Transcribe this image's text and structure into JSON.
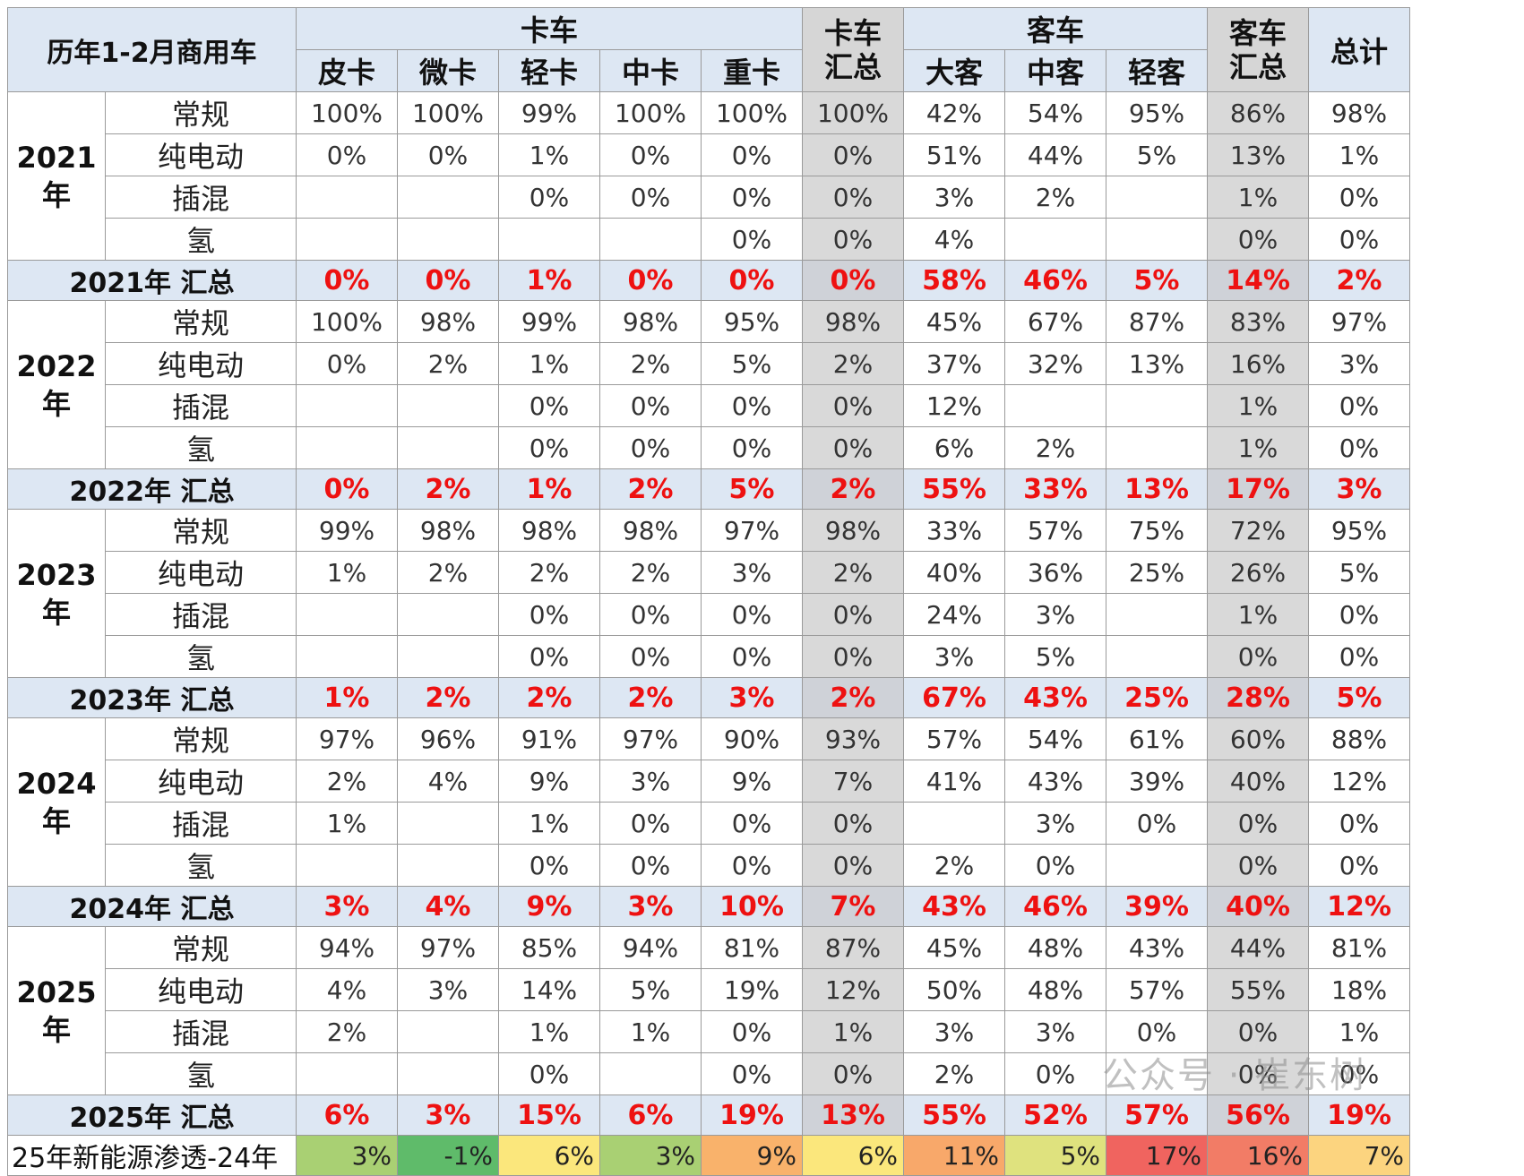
{
  "corner": "历年1-2月商用车",
  "groups": {
    "truck": "卡车",
    "truck_sum": "卡车汇总",
    "bus": "客车",
    "bus_sum": "客车汇总",
    "total": "总计"
  },
  "columns": [
    "皮卡",
    "微卡",
    "轻卡",
    "中卡",
    "重卡",
    "卡车汇总",
    "大客",
    "中客",
    "轻客",
    "客车汇总",
    "总计"
  ],
  "year_blocks": [
    {
      "year": "2021年",
      "sum_label": "2021年 汇总",
      "rows": [
        {
          "label": "常规",
          "values": [
            "100%",
            "100%",
            "99%",
            "100%",
            "100%",
            "100%",
            "42%",
            "54%",
            "95%",
            "86%",
            "98%"
          ]
        },
        {
          "label": "纯电动",
          "values": [
            "0%",
            "0%",
            "1%",
            "0%",
            "0%",
            "0%",
            "51%",
            "44%",
            "5%",
            "13%",
            "1%"
          ]
        },
        {
          "label": "插混",
          "values": [
            "",
            "",
            "0%",
            "0%",
            "0%",
            "0%",
            "3%",
            "2%",
            "",
            "1%",
            "0%"
          ]
        },
        {
          "label": "氢",
          "values": [
            "",
            "",
            "",
            "",
            "0%",
            "0%",
            "4%",
            "",
            "",
            "0%",
            "0%"
          ]
        }
      ],
      "summary": [
        "0%",
        "0%",
        "1%",
        "0%",
        "0%",
        "0%",
        "58%",
        "46%",
        "5%",
        "14%",
        "2%"
      ]
    },
    {
      "year": "2022年",
      "sum_label": "2022年 汇总",
      "rows": [
        {
          "label": "常规",
          "values": [
            "100%",
            "98%",
            "99%",
            "98%",
            "95%",
            "98%",
            "45%",
            "67%",
            "87%",
            "83%",
            "97%"
          ]
        },
        {
          "label": "纯电动",
          "values": [
            "0%",
            "2%",
            "1%",
            "2%",
            "5%",
            "2%",
            "37%",
            "32%",
            "13%",
            "16%",
            "3%"
          ]
        },
        {
          "label": "插混",
          "values": [
            "",
            "",
            "0%",
            "0%",
            "0%",
            "0%",
            "12%",
            "",
            "",
            "1%",
            "0%"
          ]
        },
        {
          "label": "氢",
          "values": [
            "",
            "",
            "0%",
            "0%",
            "0%",
            "0%",
            "6%",
            "2%",
            "",
            "1%",
            "0%"
          ]
        }
      ],
      "summary": [
        "0%",
        "2%",
        "1%",
        "2%",
        "5%",
        "2%",
        "55%",
        "33%",
        "13%",
        "17%",
        "3%"
      ]
    },
    {
      "year": "2023年",
      "sum_label": "2023年 汇总",
      "rows": [
        {
          "label": "常规",
          "values": [
            "99%",
            "98%",
            "98%",
            "98%",
            "97%",
            "98%",
            "33%",
            "57%",
            "75%",
            "72%",
            "95%"
          ]
        },
        {
          "label": "纯电动",
          "values": [
            "1%",
            "2%",
            "2%",
            "2%",
            "3%",
            "2%",
            "40%",
            "36%",
            "25%",
            "26%",
            "5%"
          ]
        },
        {
          "label": "插混",
          "values": [
            "",
            "",
            "0%",
            "0%",
            "0%",
            "0%",
            "24%",
            "3%",
            "",
            "1%",
            "0%"
          ]
        },
        {
          "label": "氢",
          "values": [
            "",
            "",
            "0%",
            "0%",
            "0%",
            "0%",
            "3%",
            "5%",
            "",
            "0%",
            "0%"
          ]
        }
      ],
      "summary": [
        "1%",
        "2%",
        "2%",
        "2%",
        "3%",
        "2%",
        "67%",
        "43%",
        "25%",
        "28%",
        "5%"
      ]
    },
    {
      "year": "2024年",
      "sum_label": "2024年 汇总",
      "rows": [
        {
          "label": "常规",
          "values": [
            "97%",
            "96%",
            "91%",
            "97%",
            "90%",
            "93%",
            "57%",
            "54%",
            "61%",
            "60%",
            "88%"
          ]
        },
        {
          "label": "纯电动",
          "values": [
            "2%",
            "4%",
            "9%",
            "3%",
            "9%",
            "7%",
            "41%",
            "43%",
            "39%",
            "40%",
            "12%"
          ]
        },
        {
          "label": "插混",
          "values": [
            "1%",
            "",
            "1%",
            "0%",
            "0%",
            "0%",
            "",
            "3%",
            "0%",
            "0%",
            "0%"
          ]
        },
        {
          "label": "氢",
          "values": [
            "",
            "",
            "0%",
            "0%",
            "0%",
            "0%",
            "2%",
            "0%",
            "",
            "0%",
            "0%"
          ]
        }
      ],
      "summary": [
        "3%",
        "4%",
        "9%",
        "3%",
        "10%",
        "7%",
        "43%",
        "46%",
        "39%",
        "40%",
        "12%"
      ]
    },
    {
      "year": "2025年",
      "sum_label": "2025年 汇总",
      "rows": [
        {
          "label": "常规",
          "values": [
            "94%",
            "97%",
            "85%",
            "94%",
            "81%",
            "87%",
            "45%",
            "48%",
            "43%",
            "44%",
            "81%"
          ]
        },
        {
          "label": "纯电动",
          "values": [
            "4%",
            "3%",
            "14%",
            "5%",
            "19%",
            "12%",
            "50%",
            "48%",
            "57%",
            "55%",
            "18%"
          ]
        },
        {
          "label": "插混",
          "values": [
            "2%",
            "",
            "1%",
            "1%",
            "0%",
            "1%",
            "3%",
            "3%",
            "0%",
            "0%",
            "1%"
          ]
        },
        {
          "label": "氢",
          "values": [
            "",
            "",
            "0%",
            "",
            "0%",
            "0%",
            "2%",
            "0%",
            "",
            "0%",
            "0%"
          ]
        }
      ],
      "summary": [
        "6%",
        "3%",
        "15%",
        "6%",
        "19%",
        "13%",
        "55%",
        "52%",
        "57%",
        "56%",
        "19%"
      ]
    }
  ],
  "diff_row": {
    "label": "25年新能源渗透-24年",
    "values": [
      "3%",
      "-1%",
      "6%",
      "3%",
      "9%",
      "6%",
      "11%",
      "5%",
      "17%",
      "16%",
      "7%"
    ],
    "colors": [
      "#a9d073",
      "#5fbb6a",
      "#fbe77c",
      "#a9d073",
      "#f9b26b",
      "#fbe77c",
      "#f8a86a",
      "#dfe27e",
      "#f0645f",
      "#f27c66",
      "#fcd47f"
    ]
  },
  "chart_data": {
    "type": "table",
    "title": "历年1-2月商用车",
    "columns": [
      "皮卡",
      "微卡",
      "轻卡",
      "中卡",
      "重卡",
      "卡车汇总",
      "大客",
      "中客",
      "轻客",
      "客车汇总",
      "总计"
    ],
    "row_labels": [
      "常规",
      "纯电动",
      "插混",
      "氢"
    ],
    "years": [
      "2021年",
      "2022年",
      "2023年",
      "2024年",
      "2025年"
    ],
    "diff_label": "25年新能源渗透-24年"
  },
  "watermark": "公众号 · 崔东树"
}
